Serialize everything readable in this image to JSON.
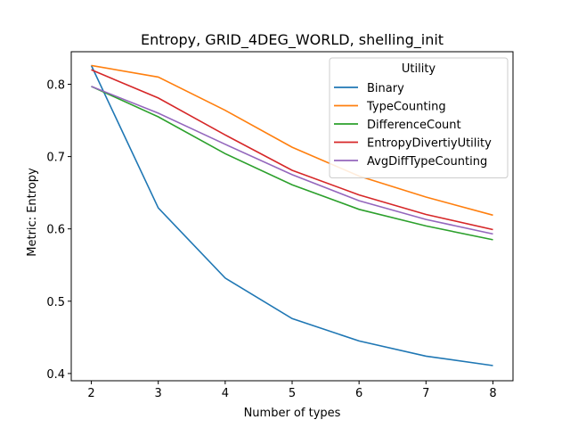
{
  "chart_data": {
    "type": "line",
    "title": "Entropy, GRID_4DEG_WORLD, shelling_init",
    "xlabel": "Number of types",
    "ylabel": "Metric: Entropy",
    "x": [
      2,
      3,
      4,
      5,
      6,
      7,
      8
    ],
    "xlim": [
      1.7,
      8.3
    ],
    "ylim": [
      0.39,
      0.845
    ],
    "xticks": [
      "2",
      "3",
      "4",
      "5",
      "6",
      "7",
      "8"
    ],
    "xtick_values": [
      2,
      3,
      4,
      5,
      6,
      7,
      8
    ],
    "yticks": [
      "0.4",
      "0.5",
      "0.6",
      "0.7",
      "0.8"
    ],
    "ytick_values": [
      0.4,
      0.5,
      0.6,
      0.7,
      0.8
    ],
    "grid": false,
    "legend": {
      "title": "Utility",
      "placement": "top-right"
    },
    "series": [
      {
        "name": "Binary",
        "color": "#1f77b4",
        "values": [
          0.826,
          0.629,
          0.532,
          0.476,
          0.445,
          0.424,
          0.411
        ]
      },
      {
        "name": "TypeCounting",
        "color": "#ff7f0e",
        "values": [
          0.826,
          0.81,
          0.764,
          0.713,
          0.673,
          0.644,
          0.619
        ]
      },
      {
        "name": "DifferenceCount",
        "color": "#2ca02c",
        "values": [
          0.797,
          0.755,
          0.704,
          0.661,
          0.627,
          0.604,
          0.585
        ]
      },
      {
        "name": "EntropyDivertiyUtility",
        "color": "#d62728",
        "values": [
          0.82,
          0.781,
          0.73,
          0.681,
          0.647,
          0.62,
          0.599
        ]
      },
      {
        "name": "AvgDiffTypeCounting",
        "color": "#9467bd",
        "values": [
          0.797,
          0.76,
          0.717,
          0.675,
          0.639,
          0.613,
          0.593
        ]
      }
    ]
  }
}
